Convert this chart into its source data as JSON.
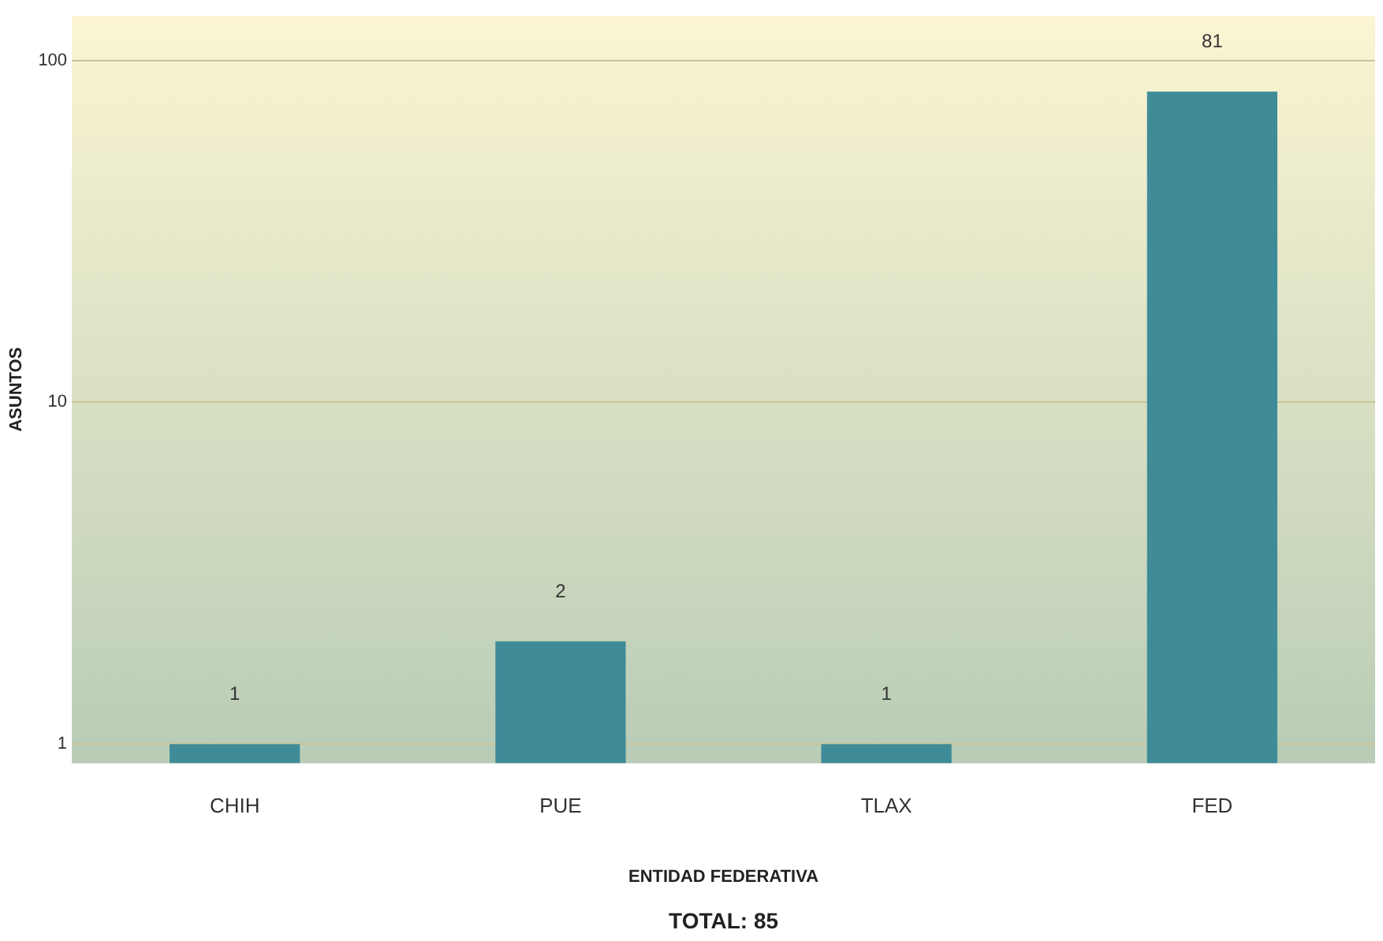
{
  "chart_data": {
    "type": "bar",
    "categories": [
      "CHIH",
      "PUE",
      "TLAX",
      "FED"
    ],
    "values": [
      1,
      2,
      1,
      81
    ],
    "color": "#3f8c98",
    "xlabel": "ENTIDAD FEDERATIVA",
    "ylabel": "ASUNTOS",
    "log": "y",
    "ylim": [
      0.88,
      135
    ],
    "yticks": [
      1,
      10,
      100
    ],
    "grid": "y",
    "data_labels": true,
    "annotations": [
      "TOTAL: 85"
    ]
  }
}
